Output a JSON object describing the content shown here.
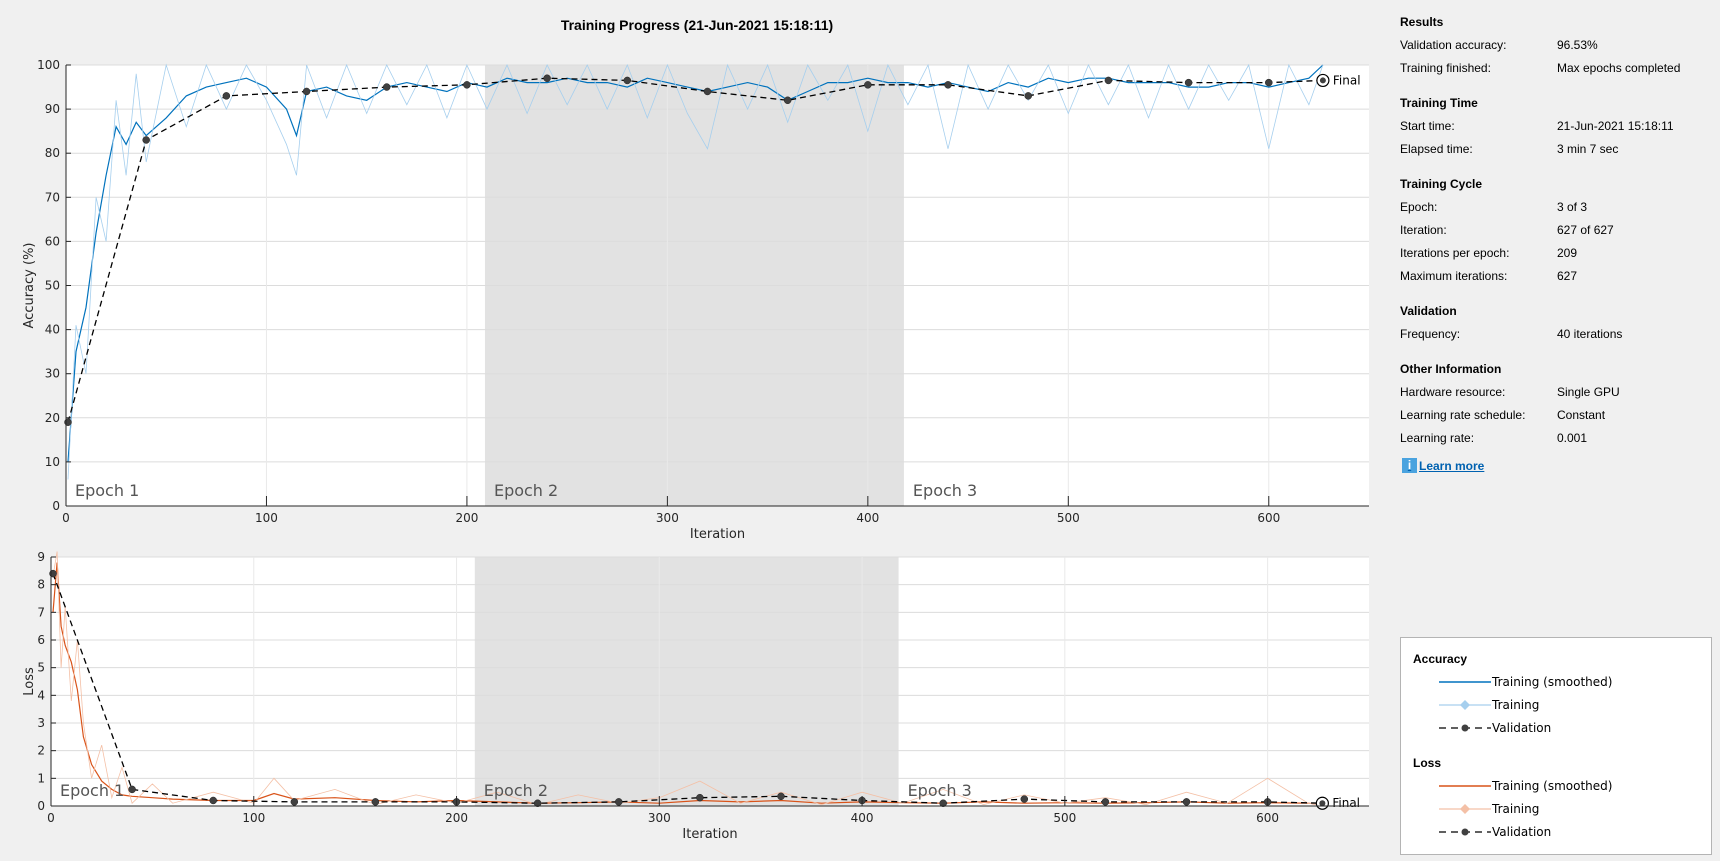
{
  "chart_data": [
    {
      "type": "line",
      "title": "Training Progress (21-Jun-2021 15:18:11)",
      "xlabel": "Iteration",
      "ylabel": "Accuracy (%)",
      "xlim": [
        0,
        650
      ],
      "ylim": [
        0,
        100
      ],
      "xticks": [
        0,
        100,
        200,
        300,
        400,
        500,
        600
      ],
      "yticks": [
        0,
        10,
        20,
        30,
        40,
        50,
        60,
        70,
        80,
        90,
        100
      ],
      "grid": true,
      "epoch_labels": [
        "Epoch 1",
        "Epoch 2",
        "Epoch 3"
      ],
      "epoch_boundaries": [
        0,
        209,
        418,
        627
      ],
      "final_label": "Final",
      "series": [
        {
          "name": "Training (smoothed)",
          "color": "#0072bd",
          "x": [
            1,
            5,
            10,
            15,
            20,
            25,
            30,
            35,
            40,
            50,
            60,
            70,
            80,
            90,
            100,
            110,
            115,
            120,
            130,
            140,
            150,
            160,
            170,
            180,
            190,
            200,
            210,
            220,
            230,
            240,
            250,
            260,
            270,
            280,
            290,
            300,
            310,
            320,
            330,
            340,
            350,
            360,
            370,
            380,
            390,
            400,
            410,
            420,
            430,
            440,
            450,
            460,
            470,
            480,
            490,
            500,
            510,
            520,
            530,
            540,
            550,
            560,
            570,
            580,
            590,
            600,
            610,
            620,
            627
          ],
          "y": [
            10,
            35,
            45,
            62,
            75,
            86,
            82,
            87,
            84,
            88,
            93,
            95,
            96,
            97,
            95,
            90,
            84,
            94,
            95,
            93,
            92,
            95,
            96,
            95,
            94,
            96,
            95,
            97,
            96,
            96,
            97,
            96,
            96,
            95,
            97,
            96,
            95,
            94,
            95,
            96,
            95,
            92,
            94,
            96,
            96,
            97,
            96,
            96,
            95,
            96,
            95,
            94,
            96,
            95,
            97,
            96,
            97,
            97,
            96,
            96,
            96,
            95,
            95,
            96,
            96,
            95,
            96,
            97,
            100
          ]
        },
        {
          "name": "Training",
          "color": "#a6cfee",
          "x": [
            1,
            5,
            10,
            15,
            20,
            25,
            30,
            35,
            40,
            50,
            60,
            70,
            80,
            90,
            100,
            110,
            115,
            120,
            130,
            140,
            150,
            160,
            170,
            180,
            190,
            200,
            210,
            220,
            230,
            240,
            250,
            260,
            270,
            280,
            290,
            300,
            310,
            320,
            330,
            340,
            350,
            360,
            370,
            380,
            390,
            400,
            410,
            420,
            430,
            440,
            450,
            460,
            470,
            480,
            490,
            500,
            510,
            520,
            530,
            540,
            550,
            560,
            570,
            580,
            590,
            600,
            610,
            620,
            627
          ],
          "y": [
            6,
            41,
            30,
            70,
            60,
            92,
            75,
            98,
            78,
            100,
            86,
            100,
            90,
            100,
            92,
            82,
            75,
            100,
            88,
            100,
            89,
            100,
            91,
            100,
            88,
            100,
            90,
            100,
            89,
            100,
            91,
            100,
            90,
            100,
            88,
            100,
            89,
            81,
            100,
            90,
            100,
            87,
            100,
            92,
            100,
            85,
            100,
            91,
            100,
            81,
            100,
            90,
            100,
            92,
            100,
            89,
            100,
            91,
            100,
            88,
            100,
            90,
            100,
            92,
            100,
            81,
            100,
            91,
            100
          ]
        },
        {
          "name": "Validation",
          "color": "#000000",
          "x": [
            1,
            40,
            80,
            120,
            160,
            200,
            240,
            280,
            320,
            360,
            400,
            440,
            480,
            520,
            560,
            600,
            627
          ],
          "y": [
            19,
            83,
            93,
            94,
            95,
            95.5,
            97,
            96.5,
            94,
            92,
            95.5,
            95.5,
            93,
            96.5,
            96,
            96,
            96.5
          ]
        }
      ]
    },
    {
      "type": "line",
      "xlabel": "Iteration",
      "ylabel": "Loss",
      "xlim": [
        0,
        650
      ],
      "ylim": [
        0,
        9
      ],
      "xticks": [
        0,
        100,
        200,
        300,
        400,
        500,
        600
      ],
      "yticks": [
        0,
        1,
        2,
        3,
        4,
        5,
        6,
        7,
        8,
        9
      ],
      "grid": true,
      "epoch_labels": [
        "Epoch 1",
        "Epoch 2",
        "Epoch 3"
      ],
      "epoch_boundaries": [
        0,
        209,
        418,
        627
      ],
      "final_label": "Final",
      "series": [
        {
          "name": "Training (smoothed)",
          "color": "#d95319",
          "x": [
            1,
            3,
            5,
            7,
            10,
            13,
            16,
            20,
            25,
            30,
            35,
            40,
            50,
            60,
            80,
            100,
            110,
            120,
            140,
            160,
            180,
            200,
            220,
            240,
            260,
            280,
            300,
            320,
            340,
            360,
            380,
            400,
            420,
            440,
            460,
            480,
            500,
            520,
            540,
            560,
            580,
            600,
            620,
            627
          ],
          "y": [
            7,
            8.8,
            6.5,
            5.8,
            5.2,
            4.2,
            2.5,
            1.5,
            0.9,
            0.6,
            0.4,
            0.35,
            0.3,
            0.25,
            0.2,
            0.2,
            0.45,
            0.25,
            0.3,
            0.2,
            0.15,
            0.2,
            0.15,
            0.1,
            0.12,
            0.15,
            0.1,
            0.2,
            0.15,
            0.2,
            0.1,
            0.15,
            0.12,
            0.1,
            0.15,
            0.1,
            0.12,
            0.1,
            0.12,
            0.15,
            0.1,
            0.12,
            0.1,
            0.05
          ]
        },
        {
          "name": "Training",
          "color": "#f4c0a6",
          "x": [
            1,
            3,
            5,
            7,
            10,
            13,
            16,
            20,
            25,
            30,
            35,
            40,
            50,
            60,
            80,
            100,
            110,
            120,
            140,
            160,
            180,
            200,
            220,
            240,
            260,
            280,
            300,
            320,
            340,
            360,
            380,
            400,
            420,
            440,
            460,
            480,
            500,
            520,
            540,
            560,
            580,
            600,
            620,
            627
          ],
          "y": [
            8.3,
            9.2,
            5,
            7.2,
            3.8,
            6,
            3,
            1,
            2.2,
            0.3,
            1.4,
            0.1,
            0.8,
            0.1,
            0.5,
            0.1,
            1,
            0.2,
            0.6,
            0.05,
            0.4,
            0.1,
            0.5,
            0.05,
            0.4,
            0.1,
            0.3,
            0.9,
            0.1,
            0.5,
            0.05,
            0.5,
            0.1,
            0.6,
            0.05,
            0.4,
            0.1,
            0.3,
            0.05,
            0.5,
            0.1,
            1,
            0.1,
            0.05
          ]
        },
        {
          "name": "Validation",
          "color": "#000000",
          "x": [
            1,
            40,
            80,
            120,
            160,
            200,
            240,
            280,
            320,
            360,
            400,
            440,
            480,
            520,
            560,
            600,
            627
          ],
          "y": [
            8.4,
            0.6,
            0.2,
            0.15,
            0.15,
            0.15,
            0.1,
            0.15,
            0.3,
            0.35,
            0.2,
            0.1,
            0.25,
            0.15,
            0.15,
            0.15,
            0.1
          ]
        }
      ]
    }
  ],
  "info_panel": {
    "sections": [
      {
        "title": "Results",
        "rows": [
          {
            "label": "Validation accuracy:",
            "value": "96.53%"
          },
          {
            "label": "Training finished:",
            "value": "Max epochs completed"
          }
        ]
      },
      {
        "title": "Training Time",
        "rows": [
          {
            "label": "Start time:",
            "value": "21-Jun-2021 15:18:11"
          },
          {
            "label": "Elapsed time:",
            "value": "3 min 7 sec"
          }
        ]
      },
      {
        "title": "Training Cycle",
        "rows": [
          {
            "label": "Epoch:",
            "value": "3 of 3"
          },
          {
            "label": "Iteration:",
            "value": "627 of 627"
          },
          {
            "label": "Iterations per epoch:",
            "value": "209"
          },
          {
            "label": "Maximum iterations:",
            "value": "627"
          }
        ]
      },
      {
        "title": "Validation",
        "rows": [
          {
            "label": "Frequency:",
            "value": "40 iterations"
          }
        ]
      },
      {
        "title": "Other Information",
        "rows": [
          {
            "label": "Hardware resource:",
            "value": "Single GPU"
          },
          {
            "label": "Learning rate schedule:",
            "value": "Constant"
          },
          {
            "label": "Learning rate:",
            "value": "0.001"
          }
        ]
      }
    ],
    "learn_more": "Learn more",
    "info_icon": "info-icon"
  },
  "legend": {
    "groups": [
      {
        "title": "Accuracy",
        "items": [
          {
            "label": "Training (smoothed)",
            "style": "solid",
            "color": "#0072bd"
          },
          {
            "label": "Training",
            "style": "diamond",
            "color": "#a6cfee"
          },
          {
            "label": "Validation",
            "style": "dashed-dot",
            "color": "#000000"
          }
        ]
      },
      {
        "title": "Loss",
        "items": [
          {
            "label": "Training (smoothed)",
            "style": "solid",
            "color": "#d95319"
          },
          {
            "label": "Training",
            "style": "diamond",
            "color": "#f4c0a6"
          },
          {
            "label": "Validation",
            "style": "dashed-dot",
            "color": "#000000"
          }
        ]
      }
    ]
  }
}
